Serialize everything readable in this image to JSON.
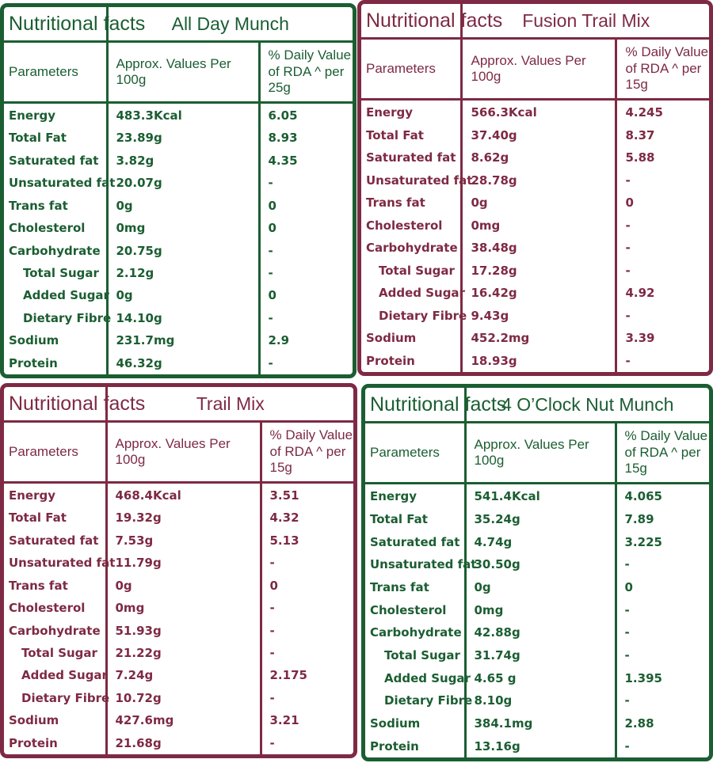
{
  "labels": {
    "section_title": "Nutritional facts",
    "parameters": "Parameters",
    "col_values": "Approx. Values Per 100g"
  },
  "colors": {
    "green": "#1b5e32",
    "maroon": "#7e2a44"
  },
  "param_names": [
    "Energy",
    "Total Fat",
    "Saturated fat",
    "Unsaturated fat",
    "Trans fat",
    "Cholesterol",
    "Carbohydrate",
    "Total Sugar",
    "Added Sugar",
    "Dietary Fibre",
    "Sodium",
    "Protein"
  ],
  "indented_params": [
    "Total Sugar",
    "Added Sugar",
    "Dietary Fibre"
  ],
  "panels": [
    {
      "product": "All Day Munch",
      "color": "green",
      "col_rda": "% Daily Value of RDA ^ per 25g",
      "rows": [
        {
          "param": "Energy",
          "value": "483.3Kcal",
          "rda": "6.05"
        },
        {
          "param": "Total Fat",
          "value": "23.89g",
          "rda": "8.93"
        },
        {
          "param": "Saturated fat",
          "value": "3.82g",
          "rda": "4.35"
        },
        {
          "param": "Unsaturated fat",
          "value": "20.07g",
          "rda": "-"
        },
        {
          "param": "Trans fat",
          "value": "0g",
          "rda": "0"
        },
        {
          "param": "Cholesterol",
          "value": "0mg",
          "rda": "0"
        },
        {
          "param": "Carbohydrate",
          "value": "20.75g",
          "rda": "-"
        },
        {
          "param": "Total Sugar",
          "value": "2.12g",
          "rda": "-"
        },
        {
          "param": "Added Sugar",
          "value": "0g",
          "rda": "0"
        },
        {
          "param": "Dietary Fibre",
          "value": "14.10g",
          "rda": "-"
        },
        {
          "param": "Sodium",
          "value": "231.7mg",
          "rda": "2.9"
        },
        {
          "param": "Protein",
          "value": "46.32g",
          "rda": "-"
        }
      ]
    },
    {
      "product": "Fusion Trail Mix",
      "color": "maroon",
      "col_rda": "% Daily Value of RDA ^ per 15g",
      "rows": [
        {
          "param": "Energy",
          "value": "566.3Kcal",
          "rda": "4.245"
        },
        {
          "param": "Total Fat",
          "value": "37.40g",
          "rda": "8.37"
        },
        {
          "param": "Saturated fat",
          "value": "8.62g",
          "rda": "5.88"
        },
        {
          "param": "Unsaturated fat",
          "value": "28.78g",
          "rda": "-"
        },
        {
          "param": "Trans fat",
          "value": "0g",
          "rda": "0"
        },
        {
          "param": "Cholesterol",
          "value": "0mg",
          "rda": "-"
        },
        {
          "param": "Carbohydrate",
          "value": "38.48g",
          "rda": "-"
        },
        {
          "param": "Total Sugar",
          "value": "17.28g",
          "rda": "-"
        },
        {
          "param": "Added Sugar",
          "value": "16.42g",
          "rda": "4.92"
        },
        {
          "param": "Dietary Fibre",
          "value": "9.43g",
          "rda": "-"
        },
        {
          "param": "Sodium",
          "value": "452.2mg",
          "rda": "3.39"
        },
        {
          "param": "Protein",
          "value": "18.93g",
          "rda": "-"
        }
      ]
    },
    {
      "product": "Trail Mix",
      "color": "maroon",
      "col_rda": "% Daily Value of RDA ^ per 15g",
      "rows": [
        {
          "param": "Energy",
          "value": "468.4Kcal",
          "rda": "3.51"
        },
        {
          "param": "Total Fat",
          "value": "19.32g",
          "rda": "4.32"
        },
        {
          "param": "Saturated fat",
          "value": "7.53g",
          "rda": "5.13"
        },
        {
          "param": "Unsaturated fat",
          "value": "11.79g",
          "rda": "-"
        },
        {
          "param": "Trans fat",
          "value": "0g",
          "rda": "0"
        },
        {
          "param": "Cholesterol",
          "value": "0mg",
          "rda": "-"
        },
        {
          "param": "Carbohydrate",
          "value": "51.93g",
          "rda": "-"
        },
        {
          "param": "Total Sugar",
          "value": "21.22g",
          "rda": "-"
        },
        {
          "param": "Added Sugar",
          "value": "7.24g",
          "rda": "2.175"
        },
        {
          "param": "Dietary Fibre",
          "value": "10.72g",
          "rda": "-"
        },
        {
          "param": "Sodium",
          "value": "427.6mg",
          "rda": "3.21"
        },
        {
          "param": "Protein",
          "value": "21.68g",
          "rda": "-"
        }
      ]
    },
    {
      "product": "4 O’Clock Nut Munch",
      "color": "green",
      "col_rda": "% Daily Value of RDA ^ per 15g",
      "rows": [
        {
          "param": "Energy",
          "value": "541.4Kcal",
          "rda": "4.065"
        },
        {
          "param": "Total Fat",
          "value": "35.24g",
          "rda": "7.89"
        },
        {
          "param": "Saturated fat",
          "value": "4.74g",
          "rda": "3.225"
        },
        {
          "param": "Unsaturated fat",
          "value": "30.50g",
          "rda": "-"
        },
        {
          "param": "Trans fat",
          "value": "0g",
          "rda": "0"
        },
        {
          "param": "Cholesterol",
          "value": "0mg",
          "rda": "-"
        },
        {
          "param": "Carbohydrate",
          "value": "42.88g",
          "rda": "-"
        },
        {
          "param": "Total Sugar",
          "value": "31.74g",
          "rda": "-"
        },
        {
          "param": "Added Sugar",
          "value": "4.65 g",
          "rda": "1.395"
        },
        {
          "param": "Dietary Fibre",
          "value": "8.10g",
          "rda": "-"
        },
        {
          "param": "Sodium",
          "value": "384.1mg",
          "rda": "2.88"
        },
        {
          "param": "Protein",
          "value": "13.16g",
          "rda": "-"
        }
      ]
    }
  ]
}
